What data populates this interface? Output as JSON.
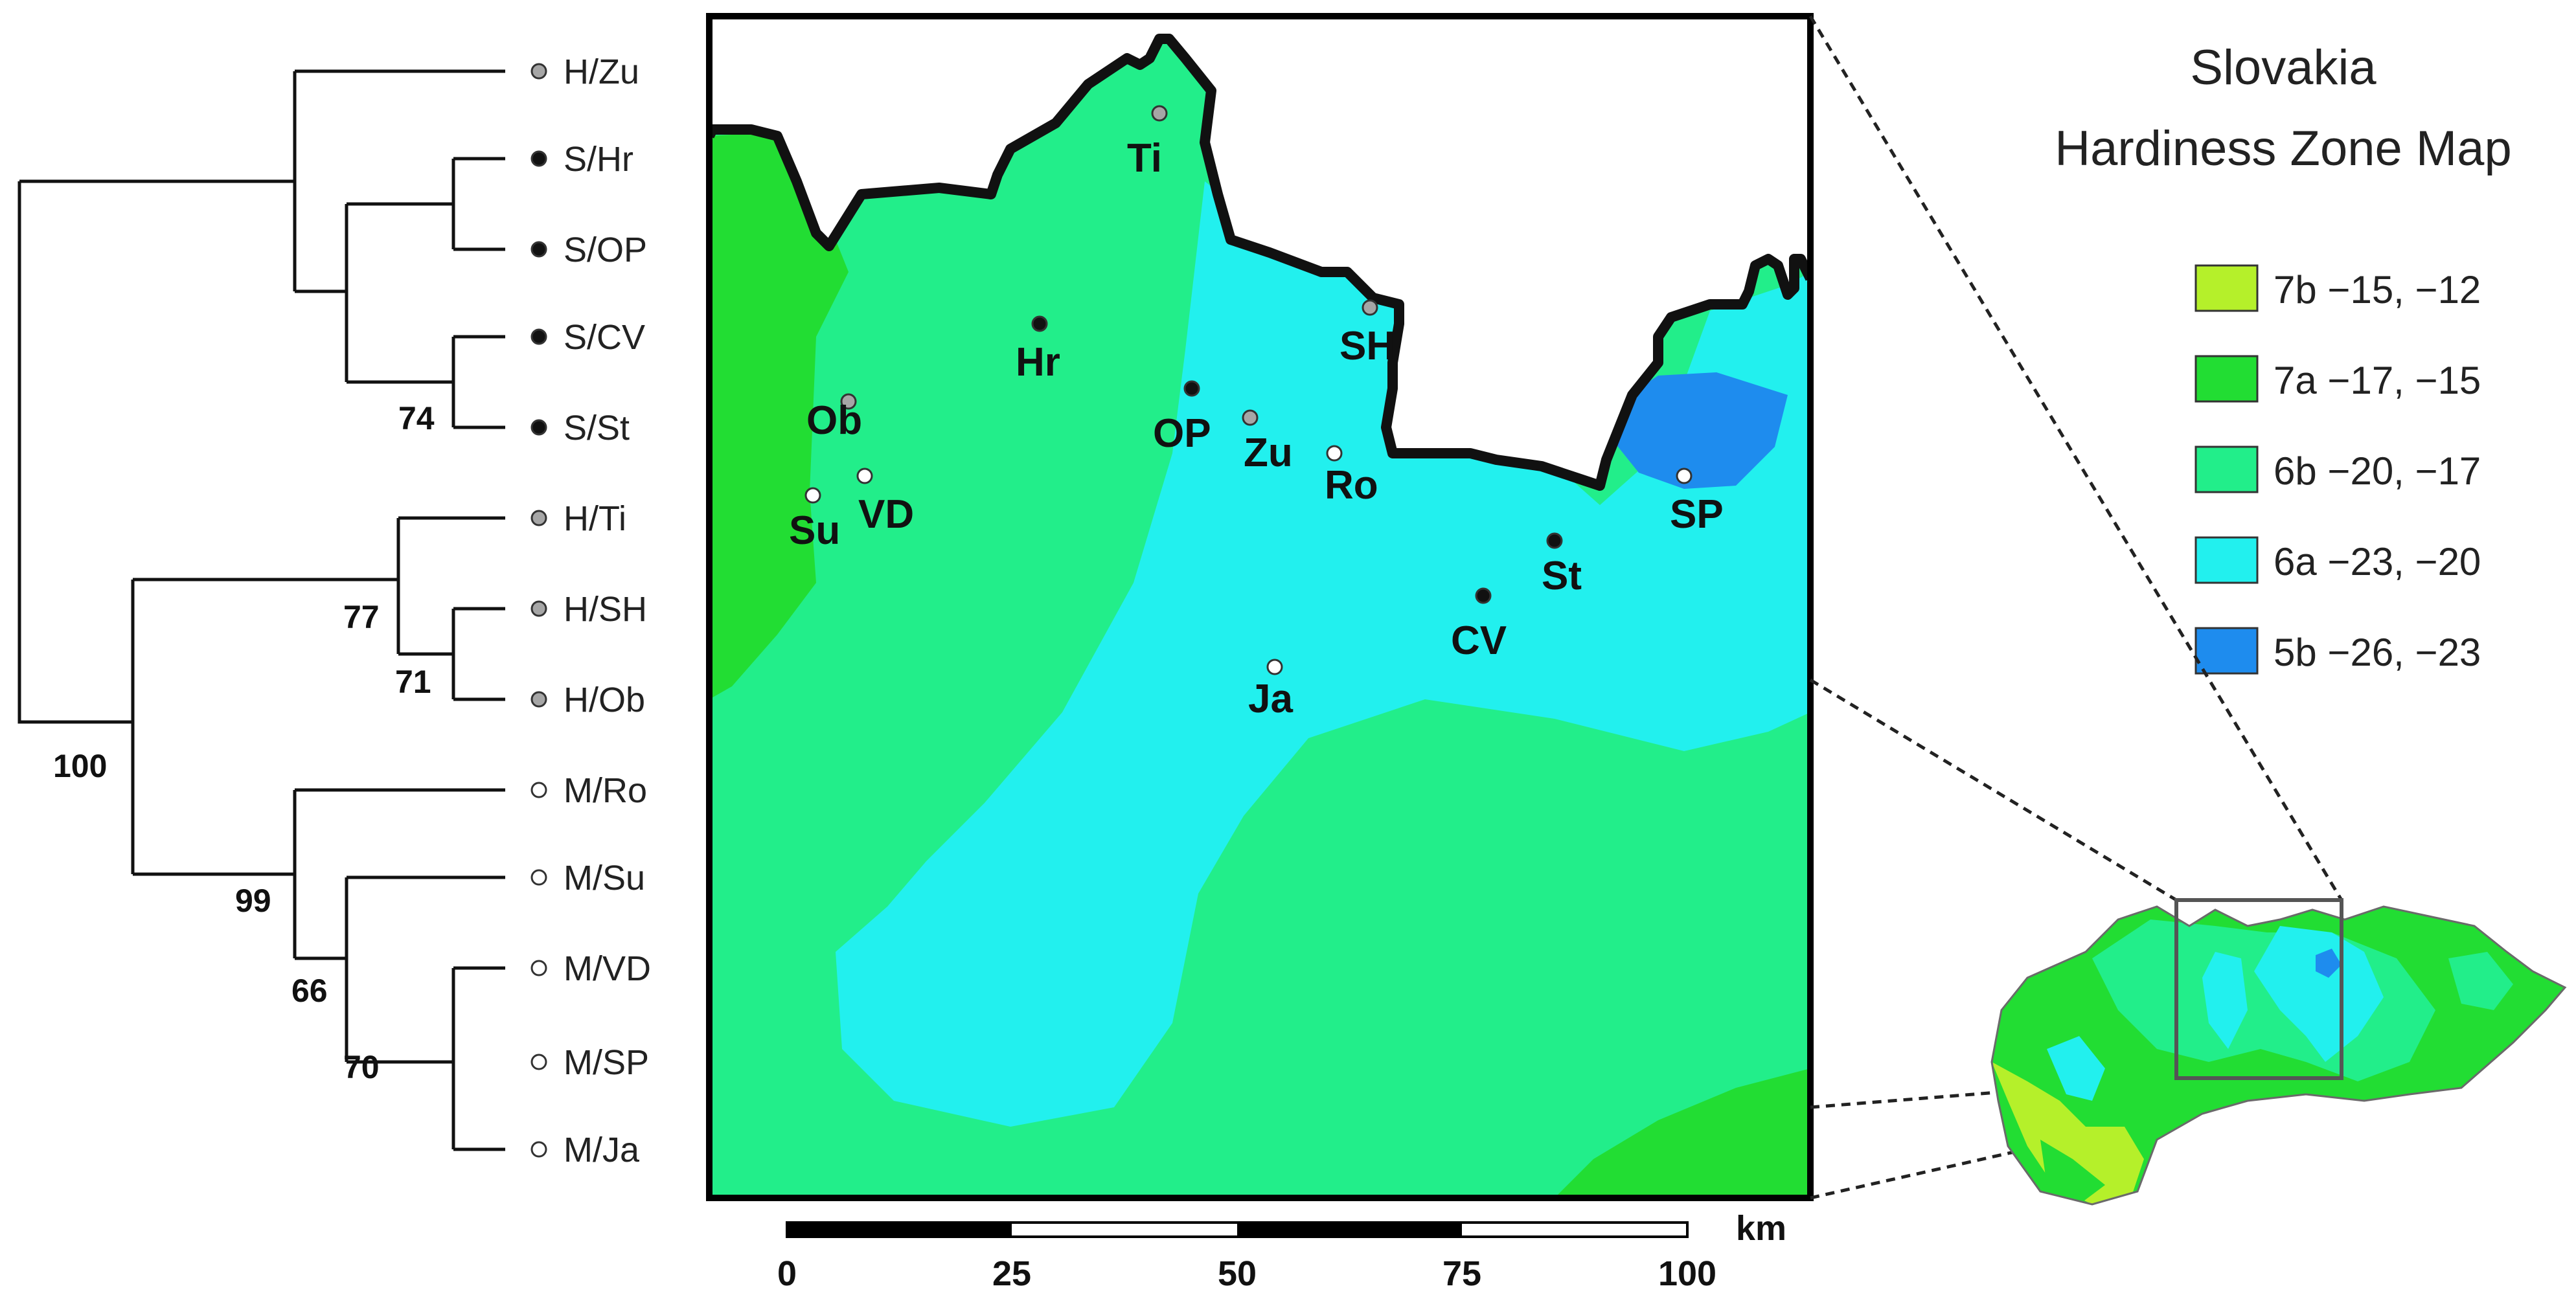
{
  "map_title": {
    "line1": "Slovakia",
    "line2": "Hardiness Zone Map"
  },
  "legend": [
    {
      "zone": "7b",
      "range": "−15, −12",
      "color": "#b5f02a"
    },
    {
      "zone": "7a",
      "range": "−17, −15",
      "color": "#22dd33"
    },
    {
      "zone": "6b",
      "range": "−20, −17",
      "color": "#22ee8a"
    },
    {
      "zone": "6a",
      "range": "−23, −20",
      "color": "#22f0ee"
    },
    {
      "zone": "5b",
      "range": "−26, −23",
      "color": "#1e8cee"
    }
  ],
  "tree": {
    "leaves": [
      {
        "label": "H/Zu",
        "dot": "gray"
      },
      {
        "label": "S/Hr",
        "dot": "black"
      },
      {
        "label": "S/OP",
        "dot": "black"
      },
      {
        "label": "S/CV",
        "dot": "black"
      },
      {
        "label": "S/St",
        "dot": "black"
      },
      {
        "label": "H/Ti",
        "dot": "gray"
      },
      {
        "label": "H/SH",
        "dot": "gray"
      },
      {
        "label": "H/Ob",
        "dot": "gray"
      },
      {
        "label": "M/Ro",
        "dot": "white"
      },
      {
        "label": "M/Su",
        "dot": "white"
      },
      {
        "label": "M/VD",
        "dot": "white"
      },
      {
        "label": "M/SP",
        "dot": "white"
      },
      {
        "label": "M/Ja",
        "dot": "white"
      }
    ],
    "bootstrap": [
      "74",
      "77",
      "71",
      "100",
      "99",
      "66",
      "70"
    ]
  },
  "sites": [
    {
      "code": "Ti",
      "dot": "gray"
    },
    {
      "code": "Hr",
      "dot": "black"
    },
    {
      "code": "SH",
      "dot": "gray"
    },
    {
      "code": "Ob",
      "dot": "gray"
    },
    {
      "code": "OP",
      "dot": "black"
    },
    {
      "code": "Zu",
      "dot": "gray"
    },
    {
      "code": "Ro",
      "dot": "white"
    },
    {
      "code": "Su",
      "dot": "white"
    },
    {
      "code": "VD",
      "dot": "white"
    },
    {
      "code": "SP",
      "dot": "white"
    },
    {
      "code": "St",
      "dot": "black"
    },
    {
      "code": "CV",
      "dot": "black"
    },
    {
      "code": "Ja",
      "dot": "white"
    }
  ],
  "scale_bar": {
    "unit": "km",
    "ticks": [
      "0",
      "25",
      "50",
      "75",
      "100"
    ]
  },
  "dot_colors": {
    "gray": "#a6a6a6",
    "black": "#111111",
    "white": "#ffffff"
  }
}
